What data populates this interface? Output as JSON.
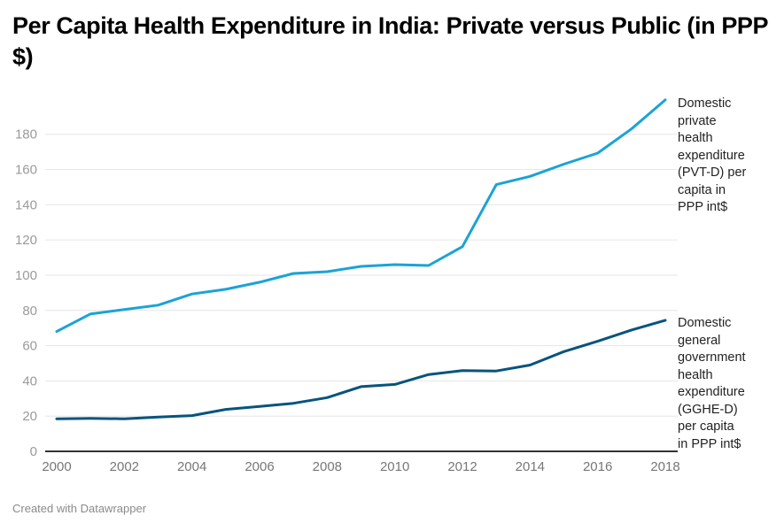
{
  "title": "Per Capita Health Expenditure in India: Private versus Public (in PPP $)",
  "footer": "Created with Datawrapper",
  "chart_data": {
    "type": "line",
    "title": "Per Capita Health Expenditure in India: Private versus Public (in PPP $)",
    "xlabel": "",
    "ylabel": "",
    "x": [
      2000,
      2001,
      2002,
      2003,
      2004,
      2005,
      2006,
      2007,
      2008,
      2009,
      2010,
      2011,
      2012,
      2013,
      2014,
      2015,
      2016,
      2017,
      2018
    ],
    "xlim": [
      2000,
      2018
    ],
    "ylim": [
      0,
      200
    ],
    "x_ticks": [
      "2000",
      "2002",
      "2004",
      "2006",
      "2008",
      "2010",
      "2012",
      "2014",
      "2016",
      "2018"
    ],
    "y_ticks": [
      "0",
      "20",
      "40",
      "60",
      "80",
      "100",
      "120",
      "140",
      "160",
      "180"
    ],
    "grid": true,
    "legend": "direct-labels-right",
    "series": [
      {
        "name": "Domestic private health expenditure (PVT-D) per capita in PPP int$",
        "label_lines": [
          "Domestic",
          "private",
          "health",
          "expenditure",
          "(PVT-D) per",
          "capita in",
          "PPP int$"
        ],
        "color": "#1ba3d6",
        "values": [
          68,
          78,
          80.5,
          83,
          89.3,
          92,
          96,
          101,
          102,
          105,
          106,
          105.5,
          116.2,
          151.4,
          156.1,
          163,
          169.3,
          183,
          199.5
        ]
      },
      {
        "name": "Domestic general government health expenditure (GGHE-D) per capita in PPP int$",
        "label_lines": [
          "Domestic",
          "general",
          "government",
          "health",
          "expenditure",
          "(GGHE-D)",
          "per capita",
          "in PPP int$"
        ],
        "color": "#07547d",
        "values": [
          18.5,
          18.7,
          18.5,
          19.5,
          20.3,
          23.8,
          25.5,
          27.3,
          30.5,
          36.7,
          38,
          43.6,
          45.8,
          45.6,
          49,
          56.6,
          62.5,
          68.9,
          74.4
        ]
      }
    ]
  },
  "colors": {
    "grid": "#e6e6e6",
    "axis": "#333333"
  }
}
